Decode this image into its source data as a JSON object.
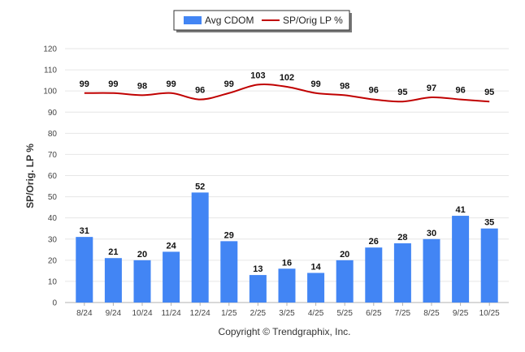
{
  "chart_data": {
    "type": "bar",
    "categories": [
      "8/24",
      "9/24",
      "10/24",
      "11/24",
      "12/24",
      "1/25",
      "2/25",
      "3/25",
      "4/25",
      "5/25",
      "6/25",
      "7/25",
      "8/25",
      "9/25",
      "10/25"
    ],
    "series": [
      {
        "name": "Avg CDOM",
        "type": "bar",
        "color": "#4285f4",
        "values": [
          31,
          21,
          20,
          24,
          52,
          29,
          13,
          16,
          14,
          20,
          26,
          28,
          30,
          41,
          35
        ]
      },
      {
        "name": "SP/Orig LP %",
        "type": "line",
        "color": "#c00000",
        "values": [
          99,
          99,
          98,
          99,
          96,
          99,
          103,
          102,
          99,
          98,
          96,
          95,
          97,
          96,
          95
        ]
      }
    ],
    "ylabel": "SP/Orig. LP %",
    "xlabel": "",
    "ylim": [
      0,
      120
    ],
    "yticks": [
      0,
      10,
      20,
      30,
      40,
      50,
      60,
      70,
      80,
      90,
      100,
      110,
      120
    ],
    "legend_position": "top-center",
    "grid": true
  },
  "footer": {
    "copyright": "Copyright © Trendgraphix, Inc."
  }
}
